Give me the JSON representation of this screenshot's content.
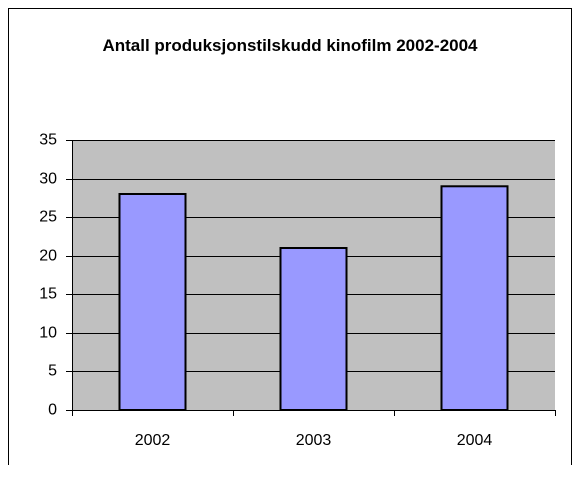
{
  "chart_data": {
    "type": "bar",
    "title": "Antall produksjonstilskudd kinofilm 2002-2004",
    "categories": [
      "2002",
      "2003",
      "2004"
    ],
    "values": [
      28,
      21,
      29
    ],
    "color": "#9999ff",
    "ylim": [
      0,
      35
    ],
    "yticks": [
      0,
      5,
      10,
      15,
      20,
      25,
      30,
      35
    ],
    "grid": true
  }
}
